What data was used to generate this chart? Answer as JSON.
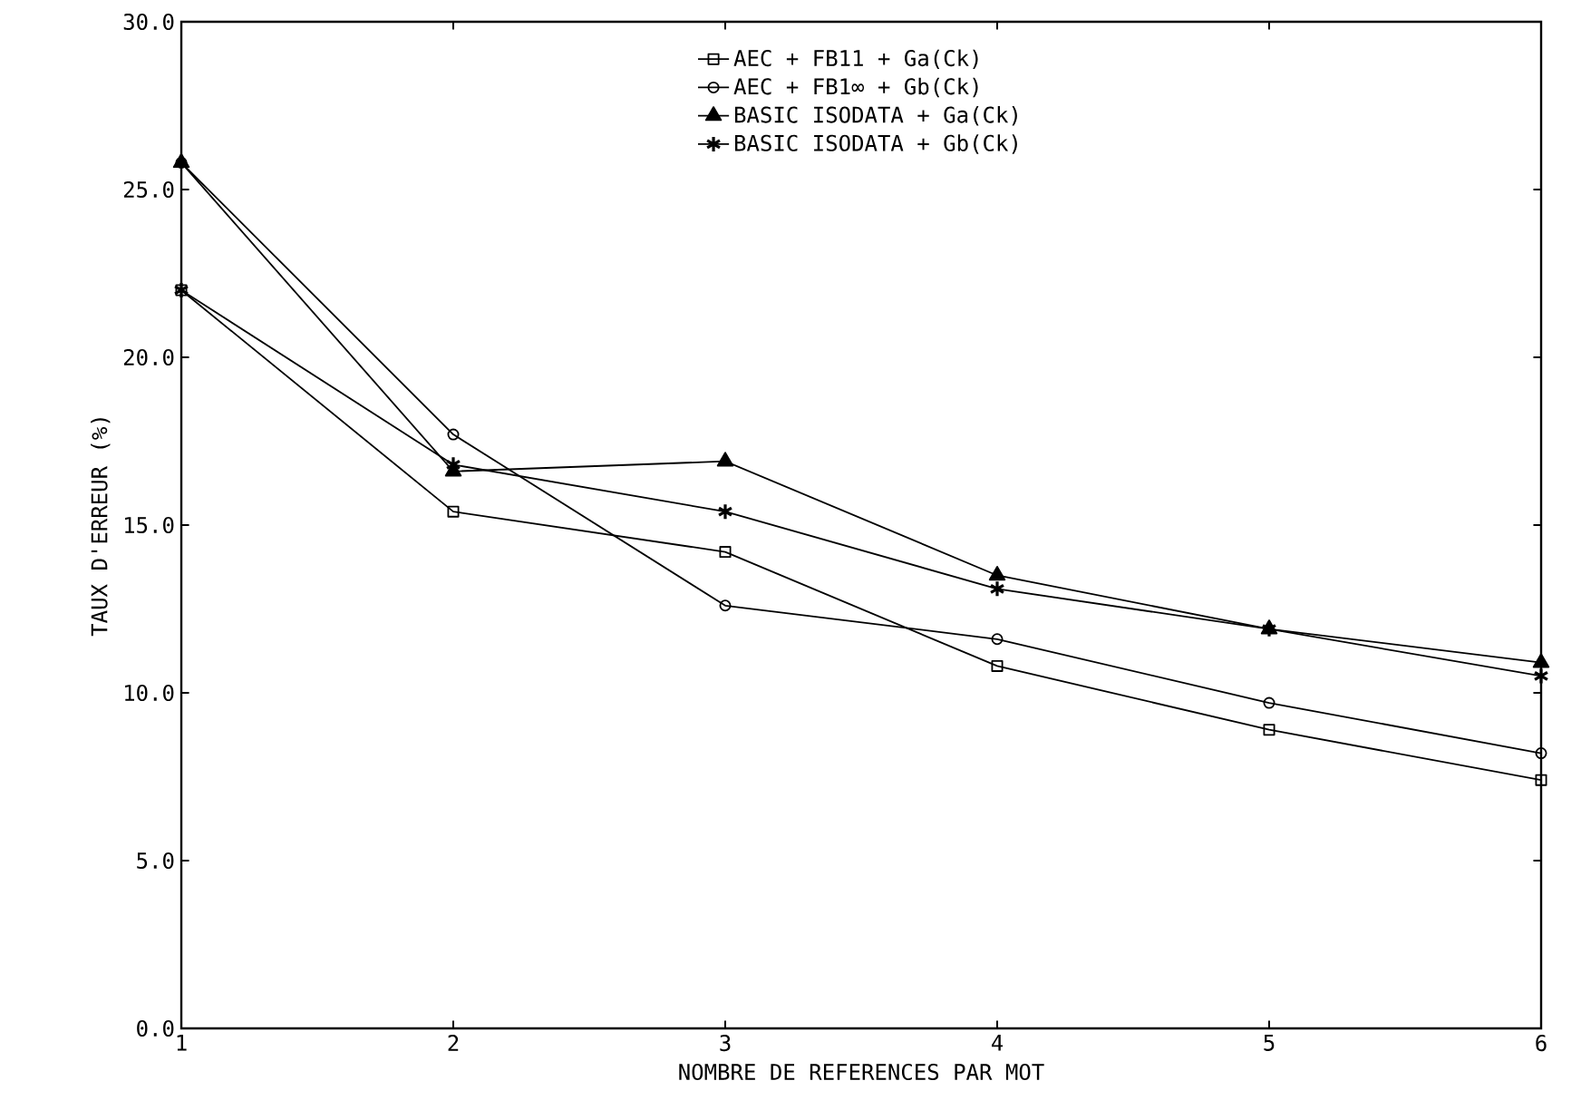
{
  "chart_data": {
    "type": "line",
    "xlabel": "NOMBRE DE REFERENCES PAR MOT",
    "ylabel": "TAUX D'ERREUR (%)",
    "x": [
      1,
      2,
      3,
      4,
      5,
      6
    ],
    "xlim": [
      1,
      6
    ],
    "xticks": [
      1,
      2,
      3,
      4,
      5,
      6
    ],
    "ylim": [
      0,
      30
    ],
    "yticks": [
      {
        "value": 0,
        "label": "0.0"
      },
      {
        "value": 5,
        "label": "5.0"
      },
      {
        "value": 10,
        "label": "10.0"
      },
      {
        "value": 15,
        "label": "15.0"
      },
      {
        "value": 20,
        "label": "20.0"
      },
      {
        "value": 25,
        "label": "25.0"
      },
      {
        "value": 30,
        "label": "30.0"
      }
    ],
    "grid": false,
    "legend": "top",
    "line_style": "solid",
    "series": [
      {
        "name": "AEC + FB11 + Ga(Ck)",
        "color": "#000000",
        "marker": "square",
        "values": [
          22.0,
          15.4,
          14.2,
          10.8,
          8.9,
          7.4
        ]
      },
      {
        "name": "AEC + FB1∞ + Gb(Ck)",
        "color": "#000000",
        "marker": "circle",
        "values": [
          25.8,
          17.7,
          12.6,
          11.6,
          9.7,
          8.2
        ]
      },
      {
        "name": "BASIC ISODATA + Ga(Ck)",
        "color": "#000000",
        "marker": "triangle",
        "values": [
          25.8,
          16.6,
          16.9,
          13.5,
          11.9,
          10.9
        ]
      },
      {
        "name": "BASIC ISODATA + Gb(Ck)",
        "color": "#000000",
        "marker": "cross",
        "values": [
          22.0,
          16.8,
          15.4,
          13.1,
          11.9,
          10.5
        ]
      }
    ]
  }
}
